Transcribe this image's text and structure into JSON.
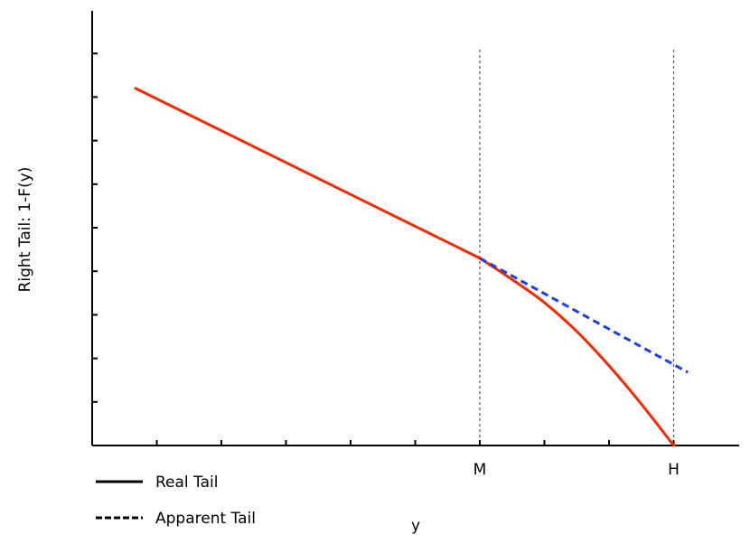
{
  "chart_data": {
    "type": "line",
    "title": "",
    "xlabel": "y",
    "ylabel": "Right Tail: 1-F(y)",
    "xlim": [
      0,
      10
    ],
    "ylim": [
      0,
      10
    ],
    "x_ticks": [
      1,
      2,
      3,
      4,
      5,
      6,
      7,
      8,
      9
    ],
    "y_ticks": [
      1,
      2,
      3,
      4,
      5,
      6,
      7,
      8,
      9
    ],
    "x_tick_labels": [
      {
        "x": 6,
        "label": "M"
      },
      {
        "x": 9,
        "label": "H"
      }
    ],
    "reference_lines": [
      {
        "x": 6,
        "style": "dotted",
        "color": "#555555"
      },
      {
        "x": 9,
        "style": "dotted",
        "color": "#555555"
      }
    ],
    "grid": false,
    "legend": {
      "position": "bottom-left"
    },
    "series": [
      {
        "name": "Real Tail",
        "color": "#f52a00",
        "style": "solid",
        "x": [
          0.67,
          6.0,
          6.5,
          7.0,
          7.5,
          8.0,
          8.5,
          9.0
        ],
        "y": [
          8.2,
          4.3,
          3.81,
          3.28,
          2.62,
          1.83,
          0.95,
          0.0
        ]
      },
      {
        "name": "Apparent Tail",
        "color": "#1a3ff0",
        "style": "dashed",
        "x": [
          6.0,
          9.22
        ],
        "y": [
          4.3,
          1.68
        ]
      }
    ]
  }
}
